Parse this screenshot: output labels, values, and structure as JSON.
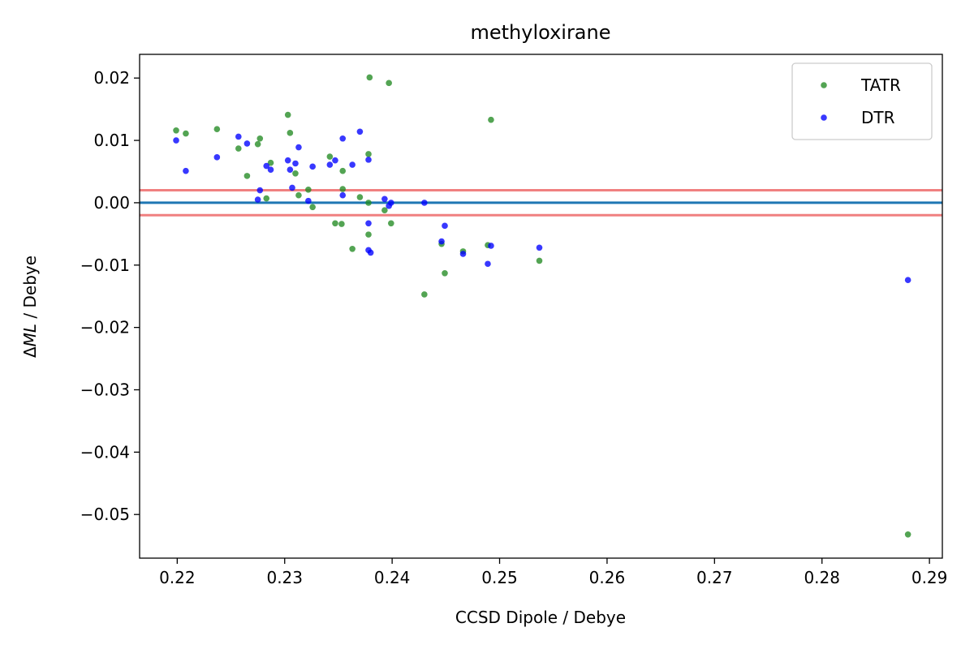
{
  "chart_data": {
    "type": "scatter",
    "title": "methyloxirane",
    "xlabel": "CCSD Dipole / Debye",
    "ylabel_prefix": "Δ",
    "ylabel_italic": "ML",
    "ylabel_suffix": " / Debye",
    "xlim": [
      0.2165,
      0.2912
    ],
    "ylim": [
      -0.057,
      0.0238
    ],
    "xticks": [
      0.22,
      0.23,
      0.24,
      0.25,
      0.26,
      0.27,
      0.28,
      0.29
    ],
    "xtick_labels": [
      "0.22",
      "0.23",
      "0.24",
      "0.25",
      "0.26",
      "0.27",
      "0.28",
      "0.29"
    ],
    "yticks": [
      0.02,
      0.01,
      0.0,
      -0.01,
      -0.02,
      -0.03,
      -0.04,
      -0.05
    ],
    "ytick_labels": [
      "0.02",
      "0.01",
      "0.00",
      "−0.01",
      "−0.02",
      "−0.03",
      "−0.04",
      "−0.05"
    ],
    "grid": false,
    "legend_position": "top-right",
    "hlines": [
      {
        "y": 0.0,
        "color": "#1f77b4"
      },
      {
        "y": 0.002,
        "color": "#f08080"
      },
      {
        "y": -0.002,
        "color": "#f08080"
      }
    ],
    "series": [
      {
        "name": "TATR",
        "color": "#228b22",
        "points": [
          [
            0.2199,
            0.0116
          ],
          [
            0.2208,
            0.0111
          ],
          [
            0.2237,
            0.0118
          ],
          [
            0.2257,
            0.0087
          ],
          [
            0.2265,
            0.0043
          ],
          [
            0.2275,
            0.0094
          ],
          [
            0.2277,
            0.0103
          ],
          [
            0.2283,
            0.0007
          ],
          [
            0.2287,
            0.0064
          ],
          [
            0.2303,
            0.0141
          ],
          [
            0.2305,
            0.0112
          ],
          [
            0.231,
            0.0047
          ],
          [
            0.2313,
            0.0012
          ],
          [
            0.2322,
            0.0021
          ],
          [
            0.2326,
            -0.0007
          ],
          [
            0.2342,
            0.0074
          ],
          [
            0.2347,
            -0.0033
          ],
          [
            0.2353,
            -0.0034
          ],
          [
            0.2354,
            0.0051
          ],
          [
            0.2354,
            0.0022
          ],
          [
            0.2363,
            -0.0074
          ],
          [
            0.237,
            0.0009
          ],
          [
            0.2378,
            0.0078
          ],
          [
            0.2378,
            -0.0051
          ],
          [
            0.2379,
            0.0201
          ],
          [
            0.2378,
            0.0
          ],
          [
            0.2393,
            -0.0012
          ],
          [
            0.2397,
            0.0192
          ],
          [
            0.2399,
            -0.0033
          ],
          [
            0.243,
            -0.0147
          ],
          [
            0.2446,
            -0.0066
          ],
          [
            0.2449,
            -0.0113
          ],
          [
            0.2466,
            -0.0078
          ],
          [
            0.2489,
            -0.0068
          ],
          [
            0.2492,
            0.0133
          ],
          [
            0.2537,
            -0.0093
          ],
          [
            0.288,
            -0.0532
          ]
        ]
      },
      {
        "name": "DTR",
        "color": "#0000ff",
        "points": [
          [
            0.2199,
            0.01
          ],
          [
            0.2208,
            0.0051
          ],
          [
            0.2237,
            0.0073
          ],
          [
            0.2257,
            0.0106
          ],
          [
            0.2265,
            0.0095
          ],
          [
            0.2275,
            0.0005
          ],
          [
            0.2277,
            0.002
          ],
          [
            0.2283,
            0.0059
          ],
          [
            0.2287,
            0.0053
          ],
          [
            0.2303,
            0.0068
          ],
          [
            0.2305,
            0.0053
          ],
          [
            0.2307,
            0.0024
          ],
          [
            0.231,
            0.0063
          ],
          [
            0.2313,
            0.0089
          ],
          [
            0.2322,
            0.0003
          ],
          [
            0.2326,
            0.0058
          ],
          [
            0.2342,
            0.0061
          ],
          [
            0.2347,
            0.0068
          ],
          [
            0.2354,
            0.0103
          ],
          [
            0.2354,
            0.0012
          ],
          [
            0.2363,
            0.0061
          ],
          [
            0.237,
            0.0114
          ],
          [
            0.2378,
            0.0069
          ],
          [
            0.2378,
            -0.0033
          ],
          [
            0.2378,
            -0.0076
          ],
          [
            0.238,
            -0.008
          ],
          [
            0.2393,
            0.0006
          ],
          [
            0.2397,
            -0.0005
          ],
          [
            0.2399,
            0.0
          ],
          [
            0.243,
            0.0
          ],
          [
            0.2446,
            -0.0062
          ],
          [
            0.2449,
            -0.0037
          ],
          [
            0.2466,
            -0.0082
          ],
          [
            0.2489,
            -0.0098
          ],
          [
            0.2492,
            -0.0069
          ],
          [
            0.2537,
            -0.0072
          ],
          [
            0.288,
            -0.0124
          ]
        ]
      }
    ]
  }
}
